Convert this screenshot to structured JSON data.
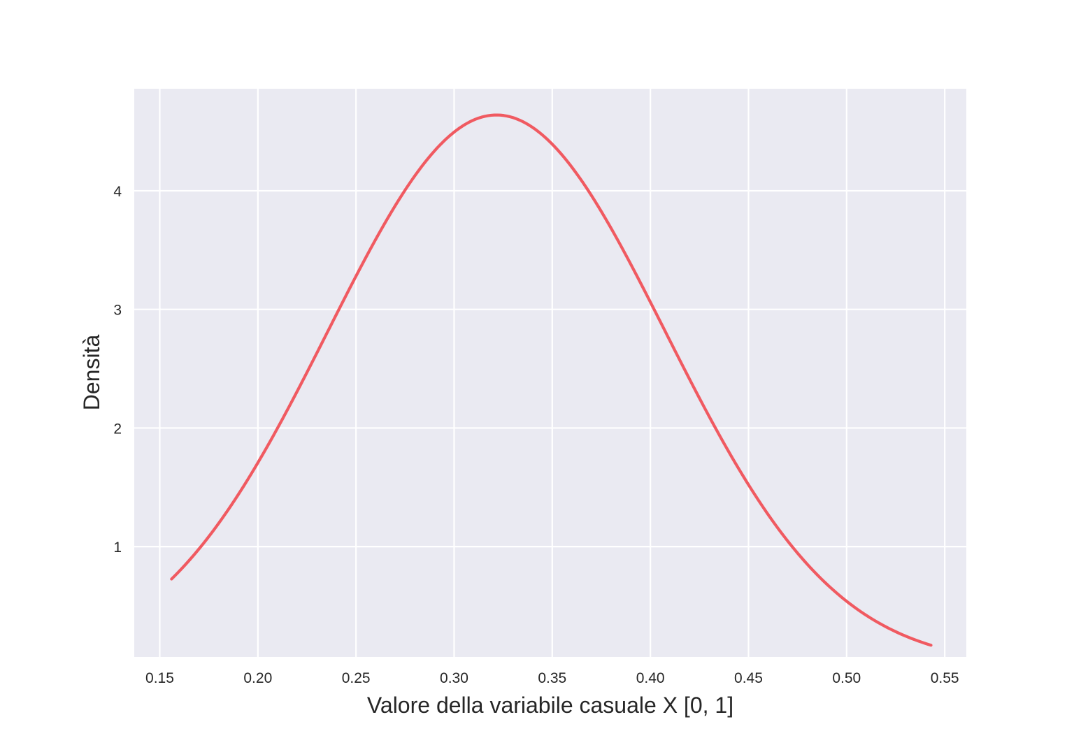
{
  "chart_data": {
    "type": "line",
    "title": "",
    "xlabel": "Valore della variabile casuale X [0, 1]",
    "ylabel": "Densità",
    "xlim": [
      0.137,
      0.561
    ],
    "ylim": [
      0.07,
      4.86
    ],
    "xticks": [
      0.15,
      0.2,
      0.25,
      0.3,
      0.35,
      0.4,
      0.45,
      0.5,
      0.55
    ],
    "xtick_labels": [
      "0.15",
      "0.20",
      "0.25",
      "0.30",
      "0.35",
      "0.40",
      "0.45",
      "0.50",
      "0.55"
    ],
    "yticks": [
      1,
      2,
      3,
      4
    ],
    "ytick_labels": [
      "1",
      "2",
      "3",
      "4"
    ],
    "grid": true,
    "background": "#eaeaf2",
    "grid_color": "#ffffff",
    "series": [
      {
        "color": "#f05a61",
        "distribution": "normal",
        "mean": 0.3216,
        "sd": 0.086,
        "x_start": 0.156,
        "x_end": 0.543,
        "points": [
          [
            0.156,
            0.44
          ],
          [
            0.18,
            0.88
          ],
          [
            0.2,
            1.48
          ],
          [
            0.22,
            2.17
          ],
          [
            0.25,
            3.27
          ],
          [
            0.28,
            4.15
          ],
          [
            0.3,
            4.5
          ],
          [
            0.3216,
            4.64
          ],
          [
            0.35,
            4.39
          ],
          [
            0.38,
            3.7
          ],
          [
            0.4,
            3.18
          ],
          [
            0.42,
            2.45
          ],
          [
            0.45,
            1.78
          ],
          [
            0.48,
            1.11
          ],
          [
            0.5,
            0.75
          ],
          [
            0.543,
            0.28
          ]
        ]
      }
    ]
  }
}
